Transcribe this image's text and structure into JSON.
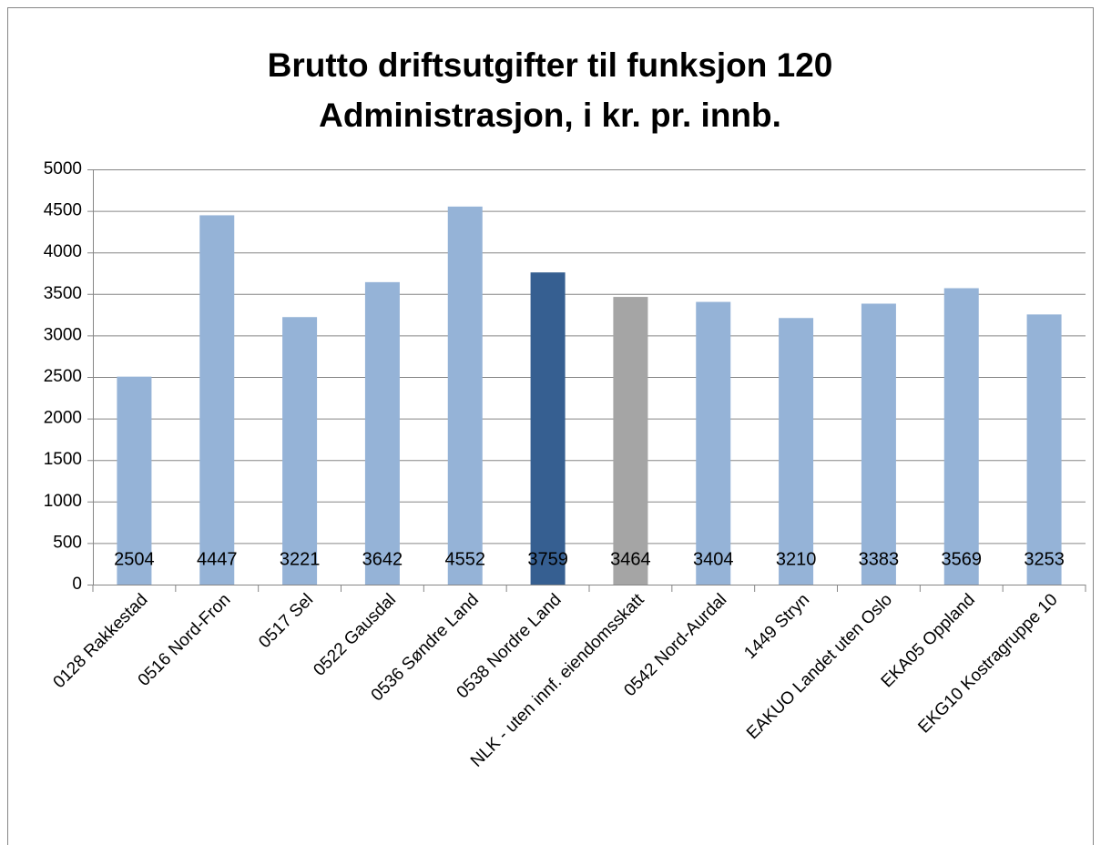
{
  "chart_data": {
    "type": "bar",
    "title": [
      "Brutto driftsutgifter til funksjon 120",
      "Administrasjon, i kr. pr. innb."
    ],
    "categories": [
      "0128 Rakkestad",
      "0516 Nord-Fron",
      "0517 Sel",
      "0522 Gausdal",
      "0536 Søndre Land",
      "0538 Nordre Land",
      "NLK - uten innf. eiendomsskatt",
      "0542 Nord-Aurdal",
      "1449 Stryn",
      "EAKUO Landet uten Oslo",
      "EKA05 Oppland",
      "EKG10 Kostragruppe 10"
    ],
    "values": [
      2504,
      4447,
      3221,
      3642,
      4552,
      3759,
      3464,
      3404,
      3210,
      3383,
      3569,
      3253
    ],
    "colors": [
      "#95b3d7",
      "#95b3d7",
      "#95b3d7",
      "#95b3d7",
      "#95b3d7",
      "#365f91",
      "#a5a5a5",
      "#95b3d7",
      "#95b3d7",
      "#95b3d7",
      "#95b3d7",
      "#95b3d7"
    ],
    "ylim": [
      0,
      5000
    ],
    "yticks": [
      0,
      500,
      1000,
      1500,
      2000,
      2500,
      3000,
      3500,
      4000,
      4500,
      5000
    ],
    "grid": true
  }
}
